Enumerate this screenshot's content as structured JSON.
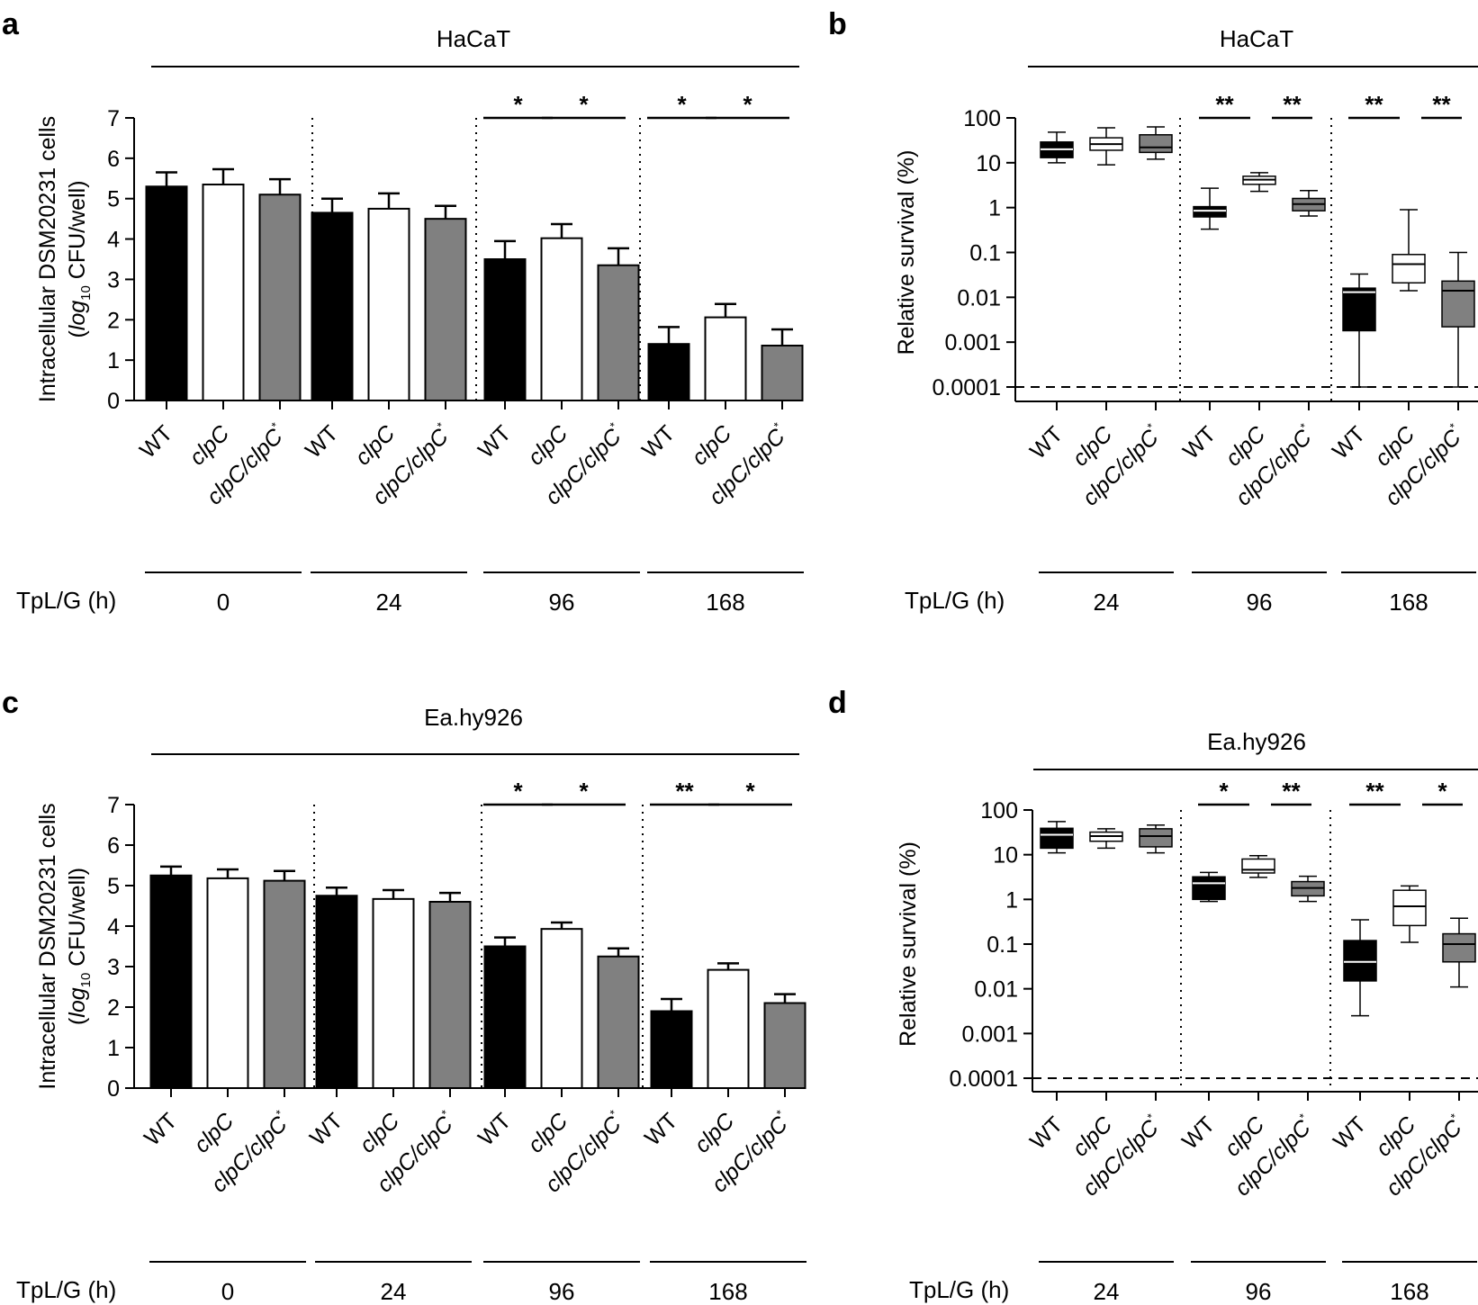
{
  "colors": {
    "wt": "#000000",
    "clpC": "#ffffff",
    "comp": "#808080",
    "axis": "#000000"
  },
  "common": {
    "strains": [
      "WT",
      "clpC",
      "clpC/clpC*"
    ],
    "tpl_label": "TpL/G (h)"
  },
  "chart_data": [
    {
      "panel": "a",
      "type": "bar",
      "title": "HaCaT",
      "ylabel_line1": "Intracellular DSM20231 cells",
      "ylabel_line2": "(log10 CFU/well)",
      "ylim": [
        0,
        7
      ],
      "yticks": [
        "0",
        "1",
        "2",
        "3",
        "4",
        "5",
        "6",
        "7"
      ],
      "times": [
        "0",
        "24",
        "96",
        "168"
      ],
      "series": [
        {
          "name": "WT",
          "values": [
            5.3,
            4.65,
            3.5,
            1.4
          ],
          "errors": [
            0.35,
            0.35,
            0.45,
            0.42
          ]
        },
        {
          "name": "clpC",
          "values": [
            5.35,
            4.75,
            4.02,
            2.06
          ],
          "errors": [
            0.38,
            0.38,
            0.35,
            0.33
          ]
        },
        {
          "name": "clpC/clpC*",
          "values": [
            5.1,
            4.5,
            3.35,
            1.36
          ],
          "errors": [
            0.38,
            0.32,
            0.42,
            0.4
          ]
        }
      ],
      "significance": [
        [
          "*",
          "*"
        ],
        [
          "*",
          "*"
        ]
      ]
    },
    {
      "panel": "b",
      "type": "box",
      "title": "HaCaT",
      "ylabel": "Relative survival (%)",
      "yscale": "log",
      "yticks": [
        "0.0001",
        "0.001",
        "0.01",
        "0.1",
        "1",
        "10",
        "100"
      ],
      "detection_limit": 0.0001,
      "times": [
        "24",
        "96",
        "168"
      ],
      "boxes": [
        [
          {
            "min": 10,
            "q1": 13,
            "median": 20,
            "q3": 29,
            "max": 48
          },
          {
            "min": 9,
            "q1": 19,
            "median": 26,
            "q3": 36,
            "max": 60
          },
          {
            "min": 12,
            "q1": 17,
            "median": 22,
            "q3": 42,
            "max": 63
          }
        ],
        [
          {
            "min": 0.33,
            "q1": 0.62,
            "median": 0.85,
            "q3": 1.05,
            "max": 2.7
          },
          {
            "min": 2.3,
            "q1": 3.3,
            "median": 4.2,
            "q3": 5.0,
            "max": 6.0
          },
          {
            "min": 0.65,
            "q1": 0.85,
            "median": 1.2,
            "q3": 1.6,
            "max": 2.4
          }
        ],
        [
          {
            "min": 0.0001,
            "q1": 0.0018,
            "median": 0.013,
            "q3": 0.016,
            "max": 0.033
          },
          {
            "min": 0.014,
            "q1": 0.021,
            "median": 0.055,
            "q3": 0.09,
            "max": 0.9
          },
          {
            "min": 0.0001,
            "q1": 0.0022,
            "median": 0.014,
            "q3": 0.023,
            "max": 0.1
          }
        ]
      ],
      "significance": [
        [
          "**",
          "**"
        ],
        [
          "**",
          "**"
        ]
      ]
    },
    {
      "panel": "c",
      "type": "bar",
      "title": "Ea.hy926",
      "ylabel_line1": "Intracellular DSM20231 cells",
      "ylabel_line2": "(log10 CFU/well)",
      "ylim": [
        0,
        7
      ],
      "yticks": [
        "0",
        "1",
        "2",
        "3",
        "4",
        "5",
        "6",
        "7"
      ],
      "times": [
        "0",
        "24",
        "96",
        "168"
      ],
      "series": [
        {
          "name": "WT",
          "values": [
            5.25,
            4.75,
            3.5,
            1.9
          ],
          "errors": [
            0.22,
            0.2,
            0.22,
            0.3
          ]
        },
        {
          "name": "clpC",
          "values": [
            5.18,
            4.67,
            3.93,
            2.92
          ],
          "errors": [
            0.22,
            0.22,
            0.16,
            0.16
          ]
        },
        {
          "name": "clpC/clpC*",
          "values": [
            5.12,
            4.6,
            3.25,
            2.1
          ],
          "errors": [
            0.24,
            0.22,
            0.2,
            0.22
          ]
        }
      ],
      "significance": [
        [
          "*",
          "*"
        ],
        [
          "**",
          "*"
        ]
      ]
    },
    {
      "panel": "d",
      "type": "box",
      "title": "Ea.hy926",
      "ylabel": "Relative survival (%)",
      "yscale": "log",
      "yticks": [
        "0.0001",
        "0.001",
        "0.01",
        "0.1",
        "1",
        "10",
        "100"
      ],
      "detection_limit": 0.0001,
      "times": [
        "24",
        "96",
        "168"
      ],
      "boxes": [
        [
          {
            "min": 11,
            "q1": 14,
            "median": 28,
            "q3": 39,
            "max": 55
          },
          {
            "min": 14,
            "q1": 20,
            "median": 26,
            "q3": 32,
            "max": 38
          },
          {
            "min": 11,
            "q1": 15,
            "median": 26,
            "q3": 38,
            "max": 46
          }
        ],
        [
          {
            "min": 0.9,
            "q1": 1.0,
            "median": 2.3,
            "q3": 3.2,
            "max": 4.0
          },
          {
            "min": 3.1,
            "q1": 3.9,
            "median": 4.6,
            "q3": 8.0,
            "max": 9.5
          },
          {
            "min": 0.9,
            "q1": 1.2,
            "median": 1.8,
            "q3": 2.5,
            "max": 3.3
          }
        ],
        [
          {
            "min": 0.0025,
            "q1": 0.015,
            "median": 0.04,
            "q3": 0.12,
            "max": 0.35
          },
          {
            "min": 0.11,
            "q1": 0.26,
            "median": 0.7,
            "q3": 1.6,
            "max": 2.0
          },
          {
            "min": 0.011,
            "q1": 0.04,
            "median": 0.1,
            "q3": 0.17,
            "max": 0.38
          }
        ]
      ],
      "significance": [
        [
          "*",
          "**"
        ],
        [
          "**",
          "*"
        ]
      ]
    }
  ]
}
